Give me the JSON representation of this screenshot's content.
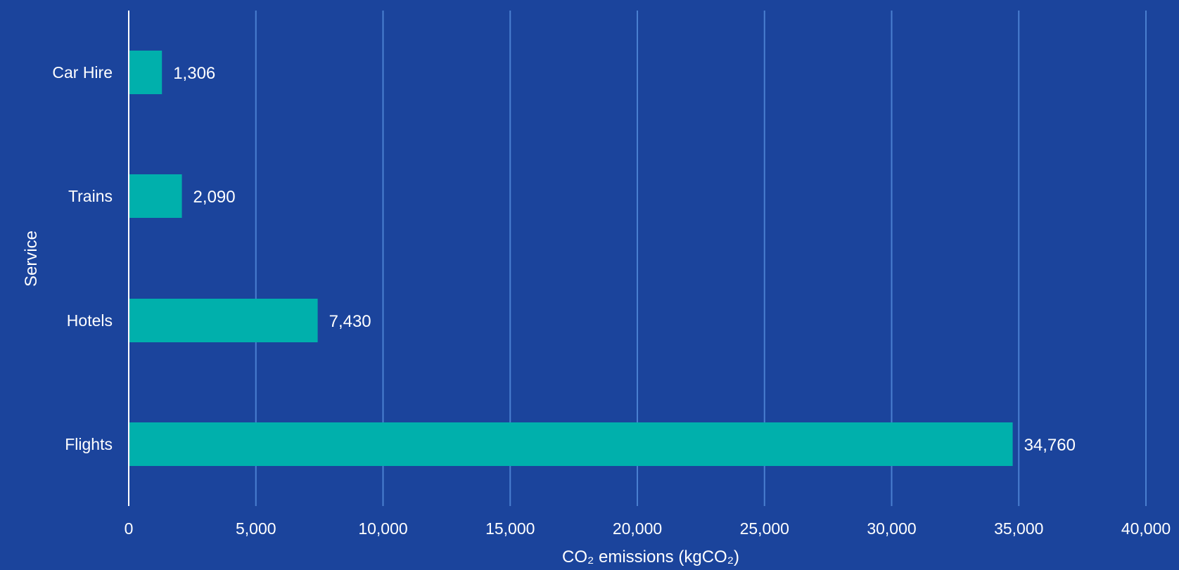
{
  "chart_data": {
    "type": "bar",
    "orientation": "horizontal",
    "categories": [
      "Car Hire",
      "Trains",
      "Hotels",
      "Flights"
    ],
    "values": [
      1306,
      2090,
      7430,
      34760
    ],
    "value_labels": [
      "1,306",
      "2,090",
      "7,430",
      "34,760"
    ],
    "xlabel": "CO₂ emissions (kgCO₂)",
    "ylabel": "Service",
    "xlim": [
      0,
      40000
    ],
    "xticks": [
      0,
      5000,
      10000,
      15000,
      20000,
      25000,
      30000,
      35000,
      40000
    ],
    "xtick_labels": [
      "0",
      "5,000",
      "10,000",
      "15,000",
      "20,000",
      "25,000",
      "30,000",
      "35,000",
      "40,000"
    ],
    "grid": "vertical",
    "legend": "none"
  },
  "colors": {
    "background": "#1b449c",
    "bar": "#00b0ac",
    "grid": "#4a7fd0",
    "axis": "#ffffff",
    "text": "#ffffff"
  }
}
